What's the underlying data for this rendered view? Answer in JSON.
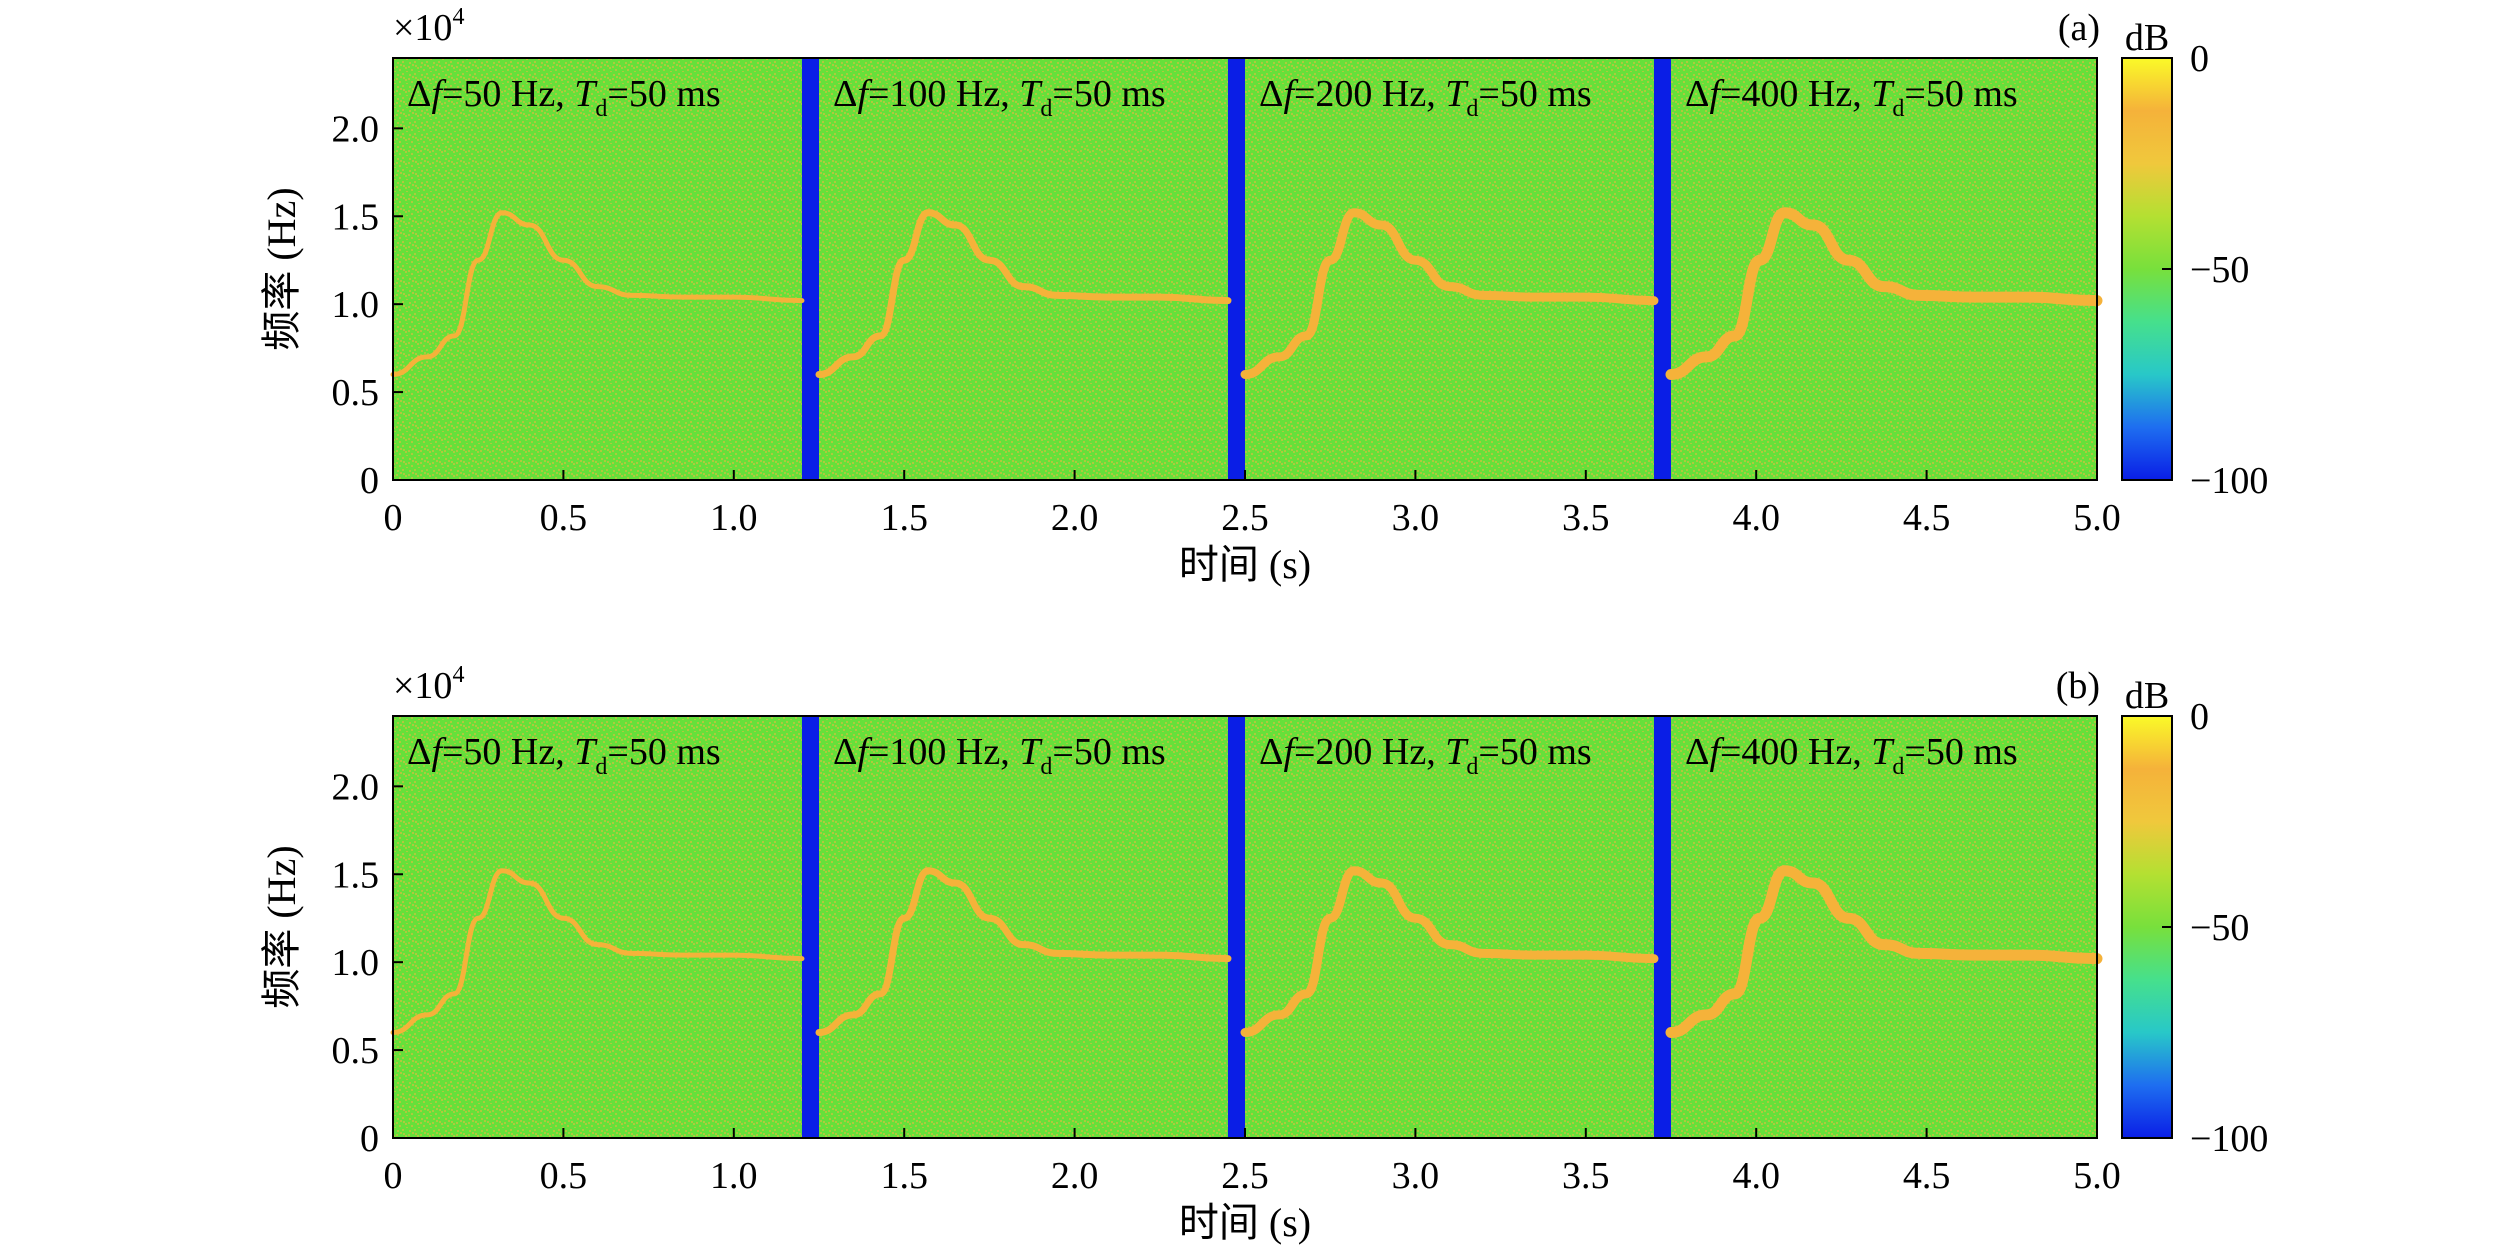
{
  "chart_data": [
    {
      "type": "heatmap",
      "panel_label": "(a)",
      "xlabel": "时间 (s)",
      "ylabel": "频率 (Hz)",
      "xlim": [
        0,
        5.0
      ],
      "ylim": [
        0,
        24000
      ],
      "xticks": [
        "0",
        "0.5",
        "1.0",
        "1.5",
        "2.0",
        "2.5",
        "3.0",
        "3.5",
        "4.0",
        "4.5",
        "5.0"
      ],
      "yticks": [
        "0",
        "0.5",
        "1.0",
        "1.5",
        "2.0"
      ],
      "y_multiplier": "×10",
      "y_multiplier_exp": "4",
      "colorbar": {
        "label": "dB",
        "range": [
          -100,
          0
        ],
        "ticks": [
          "0",
          "−50",
          "−100"
        ]
      },
      "segments": [
        {
          "df": "50 Hz",
          "td": "50 ms",
          "t_start": 0.0,
          "t_end": 1.2
        },
        {
          "df": "100 Hz",
          "td": "50 ms",
          "t_start": 1.25,
          "t_end": 2.45
        },
        {
          "df": "200 Hz",
          "td": "50 ms",
          "t_start": 2.5,
          "t_end": 3.7
        },
        {
          "df": "400 Hz",
          "td": "50 ms",
          "t_start": 3.75,
          "t_end": 5.0
        }
      ],
      "ridge_t": [
        0.0,
        0.1,
        0.18,
        0.25,
        0.32,
        0.4,
        0.5,
        0.6,
        0.7,
        0.85,
        1.0,
        1.2
      ],
      "ridge_f": [
        6000,
        7000,
        8200,
        12500,
        15200,
        14500,
        12500,
        11000,
        10500,
        10400,
        10400,
        10200
      ]
    },
    {
      "type": "heatmap",
      "panel_label": "(b)",
      "xlabel": "时间 (s)",
      "ylabel": "频率 (Hz)",
      "xlim": [
        0,
        5.0
      ],
      "ylim": [
        0,
        24000
      ],
      "xticks": [
        "0",
        "0.5",
        "1.0",
        "1.5",
        "2.0",
        "2.5",
        "3.0",
        "3.5",
        "4.0",
        "4.5",
        "5.0"
      ],
      "yticks": [
        "0",
        "0.5",
        "1.0",
        "1.5",
        "2.0"
      ],
      "y_multiplier": "×10",
      "y_multiplier_exp": "4",
      "colorbar": {
        "label": "dB",
        "range": [
          -100,
          0
        ],
        "ticks": [
          "0",
          "−50",
          "−100"
        ]
      },
      "segments": [
        {
          "df": "50 Hz",
          "td": "50 ms",
          "t_start": 0.0,
          "t_end": 1.2
        },
        {
          "df": "100 Hz",
          "td": "50 ms",
          "t_start": 1.25,
          "t_end": 2.45
        },
        {
          "df": "200 Hz",
          "td": "50 ms",
          "t_start": 2.5,
          "t_end": 3.7
        },
        {
          "df": "400 Hz",
          "td": "50 ms",
          "t_start": 3.75,
          "t_end": 5.0
        }
      ],
      "ridge_t": [
        0.0,
        0.1,
        0.18,
        0.25,
        0.32,
        0.4,
        0.5,
        0.6,
        0.7,
        0.85,
        1.0,
        1.2
      ],
      "ridge_f": [
        6000,
        7000,
        8200,
        12500,
        15200,
        14500,
        12500,
        11000,
        10500,
        10400,
        10400,
        10200
      ]
    }
  ],
  "colors": {
    "background_green": "#66e03a",
    "ridge_orange": "#f5b23a",
    "separator_blue": "#0a1ee6",
    "colormap": [
      "#0a1ee6",
      "#1e6ef0",
      "#28c8c8",
      "#46e08c",
      "#78e03c",
      "#b4e032",
      "#f0c83c",
      "#f5b23a",
      "#fafa28"
    ]
  }
}
